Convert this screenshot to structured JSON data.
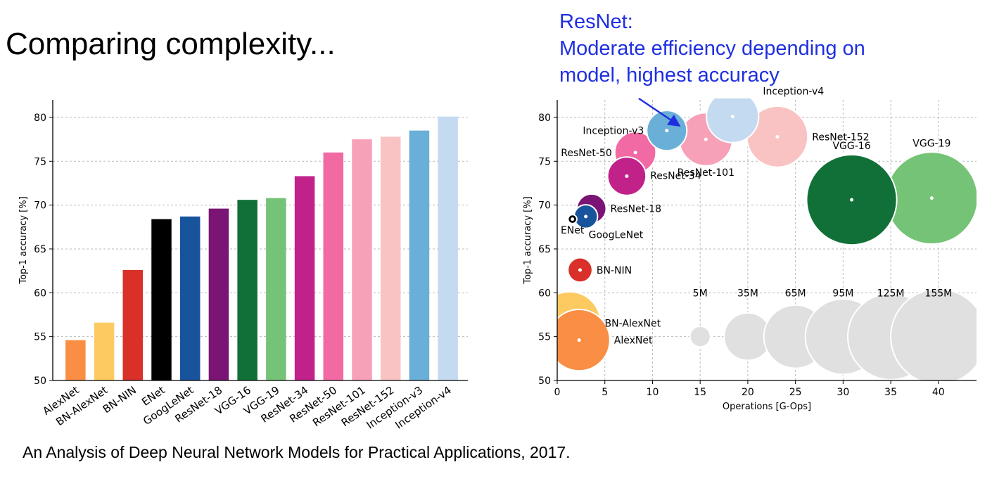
{
  "slide": {
    "title": "Comparing complexity...",
    "annotation_lines": [
      "ResNet:",
      "Moderate efficiency depending on",
      "model, highest accuracy"
    ],
    "citation": "An Analysis of Deep Neural Network Models for Practical Applications, 2017."
  },
  "chart_data": [
    {
      "type": "bar",
      "xlabel": "",
      "ylabel": "Top-1 accuracy [%]",
      "ylim": [
        50,
        82
      ],
      "yticks": [
        50,
        55,
        60,
        65,
        70,
        75,
        80
      ],
      "grid": true,
      "categories": [
        "AlexNet",
        "BN-AlexNet",
        "BN-NIN",
        "ENet",
        "GoogLeNet",
        "ResNet-18",
        "VGG-16",
        "VGG-19",
        "ResNet-34",
        "ResNet-50",
        "ResNet-101",
        "ResNet-152",
        "Inception-v3",
        "Inception-v4"
      ],
      "values": [
        54.6,
        56.6,
        62.6,
        68.4,
        68.7,
        69.6,
        70.6,
        70.8,
        73.3,
        76.0,
        77.5,
        77.8,
        78.5,
        80.1
      ],
      "colors": [
        "#f98e44",
        "#fdca62",
        "#d9302a",
        "#000000",
        "#17549b",
        "#7a1475",
        "#117037",
        "#75c376",
        "#c1228a",
        "#f16aa3",
        "#f7a1b9",
        "#f8c3c2",
        "#6aafd8",
        "#c4daf0"
      ]
    },
    {
      "type": "scatter",
      "xlabel": "Operations [G-Ops]",
      "ylabel": "Top-1 accuracy [%]",
      "xlim": [
        0,
        44
      ],
      "ylim": [
        50,
        82
      ],
      "xticks": [
        0,
        5,
        10,
        15,
        20,
        25,
        30,
        35,
        40
      ],
      "yticks": [
        50,
        55,
        60,
        65,
        70,
        75,
        80
      ],
      "grid": true,
      "bubble_size": "number of parameters",
      "points": [
        {
          "label": "AlexNet",
          "x": 2.3,
          "y": 54.6,
          "params_M": 61,
          "color": "#f98e44",
          "label_pos": "right"
        },
        {
          "label": "BN-AlexNet",
          "x": 1.3,
          "y": 56.6,
          "params_M": 62,
          "color": "#fdca62",
          "label_pos": "right"
        },
        {
          "label": "BN-NIN",
          "x": 2.4,
          "y": 62.6,
          "params_M": 7.6,
          "color": "#d9302a",
          "label_pos": "right"
        },
        {
          "label": "ENet",
          "x": 1.6,
          "y": 68.4,
          "params_M": 0.4,
          "color": "#000000",
          "label_pos": "below"
        },
        {
          "label": "GoogLeNet",
          "x": 3.0,
          "y": 68.7,
          "params_M": 7,
          "color": "#17549b",
          "label_pos": "below-right"
        },
        {
          "label": "ResNet-18",
          "x": 3.6,
          "y": 69.6,
          "params_M": 11.7,
          "color": "#7a1475",
          "label_pos": "right"
        },
        {
          "label": "ResNet-34",
          "x": 7.3,
          "y": 73.3,
          "params_M": 21.8,
          "color": "#c1228a",
          "label_pos": "right"
        },
        {
          "label": "ResNet-50",
          "x": 8.2,
          "y": 76.0,
          "params_M": 25.6,
          "color": "#f16aa3",
          "label_pos": "left"
        },
        {
          "label": "Inception-v3",
          "x": 11.5,
          "y": 78.5,
          "params_M": 24,
          "color": "#6aafd8",
          "label_pos": "left"
        },
        {
          "label": "ResNet-101",
          "x": 15.6,
          "y": 77.5,
          "params_M": 44.5,
          "color": "#f7a1b9",
          "label_pos": "below"
        },
        {
          "label": "Inception-v4",
          "x": 18.4,
          "y": 80.1,
          "params_M": 43,
          "color": "#c4daf0",
          "label_pos": "right"
        },
        {
          "label": "ResNet-152",
          "x": 23.1,
          "y": 77.8,
          "params_M": 60.2,
          "color": "#f8c3c2",
          "label_pos": "right"
        },
        {
          "label": "VGG-16",
          "x": 30.9,
          "y": 70.6,
          "params_M": 138,
          "color": "#117037",
          "label_pos": "above"
        },
        {
          "label": "VGG-19",
          "x": 39.3,
          "y": 70.8,
          "params_M": 144,
          "color": "#75c376",
          "label_pos": "above"
        }
      ],
      "size_legend": {
        "labels": [
          "5M",
          "35M",
          "65M",
          "95M",
          "125M",
          "155M"
        ],
        "params_M": [
          5,
          35,
          65,
          95,
          125,
          155
        ],
        "x": [
          15,
          20,
          25,
          30,
          35,
          40
        ],
        "y": 55,
        "color": "#e0e0e0"
      }
    }
  ]
}
